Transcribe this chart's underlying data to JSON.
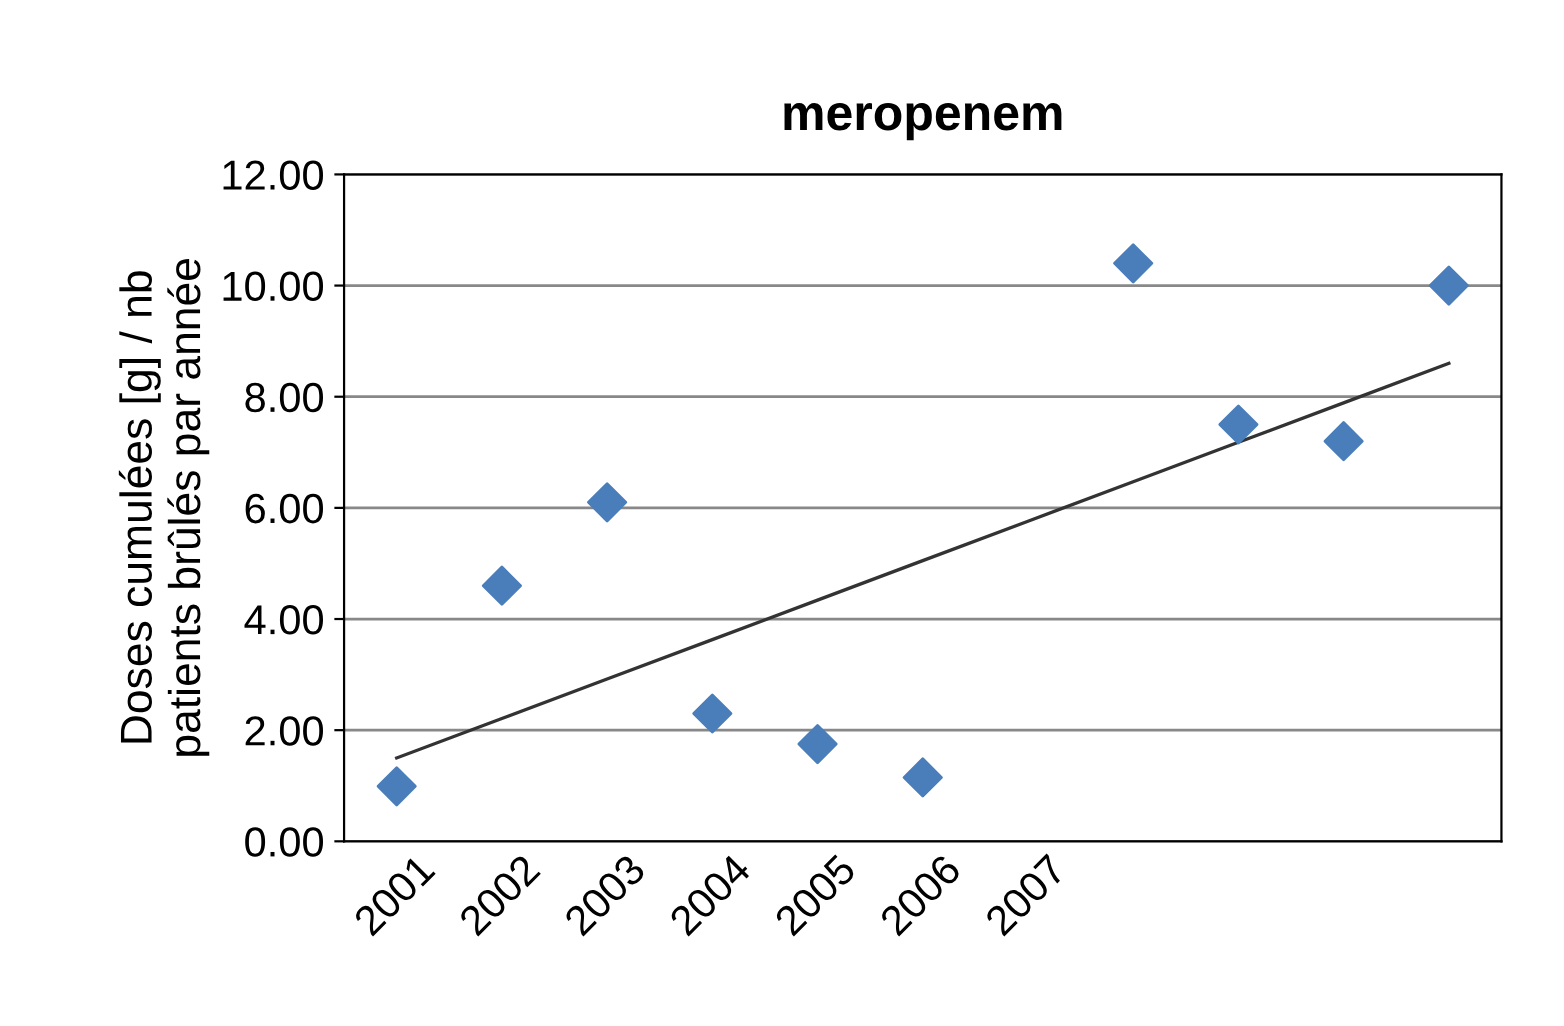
{
  "chart_data": {
    "type": "scatter",
    "title": "meropenem",
    "ylabel": "Doses cumulées [g] / nb\npatients brûlés par année",
    "categories": [
      "2001",
      "2002",
      "2003",
      "2004",
      "2005",
      "2006",
      "2007",
      null,
      null,
      null,
      null
    ],
    "series": [
      {
        "color": "#4a7ebb",
        "marker": "diamond",
        "values": [
          0.99,
          4.6,
          6.1,
          2.3,
          1.75,
          1.15,
          null,
          10.4,
          7.5,
          7.2,
          10.0
        ]
      },
      {
        "type": "line",
        "color": "#333333",
        "marker": "none",
        "values": [
          1.5,
          2.21,
          2.92,
          3.63,
          4.34,
          5.05,
          5.76,
          6.47,
          7.18,
          7.89,
          8.6
        ]
      }
    ],
    "ylim": [
      0,
      12
    ],
    "yticks": [
      {
        "value": 0,
        "label": "0.00"
      },
      {
        "value": 2,
        "label": "2.00"
      },
      {
        "value": 4,
        "label": "4.00"
      },
      {
        "value": 6,
        "label": "6.00"
      },
      {
        "value": 8,
        "label": "8.00"
      },
      {
        "value": 10,
        "label": "10.00"
      },
      {
        "value": 12,
        "label": "12.00"
      }
    ],
    "grid": "y",
    "legend": false
  }
}
